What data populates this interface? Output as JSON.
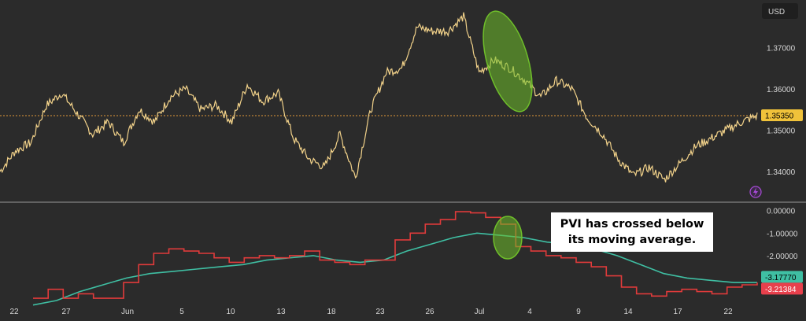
{
  "currency_button": "USD",
  "annotation_text": "PVI has crossed below its moving average.",
  "colors": {
    "background": "#2b2b2b",
    "price_line": "#f2d28a",
    "pvi_line": "#e03b3b",
    "ma_line": "#3fbfa3",
    "highlight": "#6fbf2a",
    "current_price_badge": "#f0c23a",
    "ma_badge": "#3fbfa3",
    "pvi_badge": "#e8404c",
    "lightning_icon": "#a84ad8"
  },
  "chart_data": [
    {
      "type": "line",
      "panel": "price",
      "price_axis_ticks": [
        "1.37000",
        "1.36000",
        "1.35000",
        "1.34000"
      ],
      "ylim": [
        1.3335,
        1.38
      ],
      "current_value": "1.35350",
      "reference_line": 1.3535,
      "x_ticks": [
        "22",
        "27",
        "Jun",
        "5",
        "10",
        "13",
        "18",
        "23",
        "26",
        "Jul",
        "4",
        "9",
        "14",
        "17",
        "22"
      ],
      "points": [
        [
          "22",
          1.34
        ],
        [
          "24",
          1.345
        ],
        [
          "26",
          1.347
        ],
        [
          "27",
          1.356
        ],
        [
          "28",
          1.359
        ],
        [
          "29",
          1.354
        ],
        [
          "30",
          1.349
        ],
        [
          "Jun",
          1.352
        ],
        [
          "3",
          1.347
        ],
        [
          "4",
          1.355
        ],
        [
          "5",
          1.352
        ],
        [
          "6",
          1.358
        ],
        [
          "7",
          1.36
        ],
        [
          "10",
          1.355
        ],
        [
          "11",
          1.356
        ],
        [
          "12",
          1.352
        ],
        [
          "13",
          1.361
        ],
        [
          "14",
          1.357
        ],
        [
          "17",
          1.359
        ],
        [
          "18",
          1.348
        ],
        [
          "19",
          1.343
        ],
        [
          "20",
          1.341
        ],
        [
          "21",
          1.349
        ],
        [
          "23",
          1.3385
        ],
        [
          "24",
          1.355
        ],
        [
          "25",
          1.364
        ],
        [
          "26",
          1.365
        ],
        [
          "27",
          1.375
        ],
        [
          "28",
          1.374
        ],
        [
          "Jul",
          1.374
        ],
        [
          "2",
          1.3775
        ],
        [
          "3",
          1.364
        ],
        [
          "4",
          1.367
        ],
        [
          "5",
          1.365
        ],
        [
          "8",
          1.362
        ],
        [
          "9",
          1.358
        ],
        [
          "10",
          1.362
        ],
        [
          "11",
          1.36
        ],
        [
          "12",
          1.353
        ],
        [
          "14",
          1.349
        ],
        [
          "15",
          1.343
        ],
        [
          "16",
          1.339
        ],
        [
          "17",
          1.341
        ],
        [
          "18",
          1.338
        ],
        [
          "19",
          1.342
        ],
        [
          "20",
          1.346
        ],
        [
          "21",
          1.348
        ],
        [
          "22",
          1.35
        ],
        [
          "23",
          1.352
        ],
        [
          "24",
          1.3535
        ]
      ]
    },
    {
      "type": "line",
      "panel": "indicator",
      "y_axis_ticks": [
        "0.00000",
        "-1.00000",
        "-2.00000"
      ],
      "ylim": [
        -4.0,
        0.2
      ],
      "series": [
        {
          "current_value": "-3.21384",
          "values": [
            -3.9,
            -3.5,
            -3.9,
            -3.7,
            -3.9,
            -3.9,
            -3.2,
            -2.4,
            -1.9,
            -1.7,
            -1.8,
            -1.9,
            -2.1,
            -2.3,
            -2.1,
            -2.0,
            -2.1,
            -2.0,
            -1.8,
            -2.2,
            -2.3,
            -2.4,
            -2.2,
            -2.2,
            -1.3,
            -1.0,
            -0.6,
            -0.4,
            -0.05,
            -0.1,
            -0.3,
            -0.6,
            -1.6,
            -1.8,
            -2.0,
            -2.1,
            -2.3,
            -2.5,
            -2.9,
            -3.4,
            -3.7,
            -3.8,
            -3.6,
            -3.5,
            -3.6,
            -3.7,
            -3.4,
            -3.3,
            -3.2
          ]
        },
        {
          "current_value": "-3.17770",
          "values": [
            -4.2,
            -4.0,
            -3.6,
            -3.3,
            -3.0,
            -2.8,
            -2.7,
            -2.6,
            -2.5,
            -2.4,
            -2.2,
            -2.1,
            -2.0,
            -2.2,
            -2.3,
            -2.2,
            -1.8,
            -1.5,
            -1.2,
            -1.0,
            -1.1,
            -1.2,
            -1.4,
            -1.5,
            -1.7,
            -2.0,
            -2.4,
            -2.8,
            -3.0,
            -3.1,
            -3.2,
            -3.2
          ]
        }
      ]
    }
  ]
}
